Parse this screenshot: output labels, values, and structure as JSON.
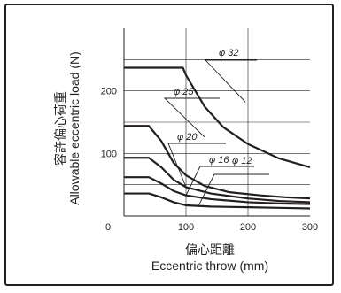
{
  "chart_data": {
    "type": "line",
    "ylabel_jp": "容許偏心荷重",
    "ylabel": "Allowable eccentric load (N)",
    "xlabel_jp": "偏心距離",
    "xlabel": "Eccentric throw (mm)",
    "xlim": [
      0,
      300
    ],
    "ylim": [
      0,
      300
    ],
    "x_ticks": [
      0,
      100,
      200,
      300
    ],
    "y_ticks": [
      100,
      200
    ],
    "grid": true,
    "colors": {
      "line": "#231f20",
      "grid": "#231f20"
    },
    "series": [
      {
        "name": "φ 32",
        "x": [
          0,
          95,
          100,
          130,
          160,
          200,
          250,
          300
        ],
        "y": [
          237,
          237,
          225,
          175,
          142,
          115,
          92,
          78
        ]
      },
      {
        "name": "φ 25",
        "x": [
          0,
          40,
          60,
          80,
          100,
          130,
          170,
          220,
          260,
          300
        ],
        "y": [
          144,
          144,
          120,
          85,
          65,
          48,
          38,
          33,
          30,
          28
        ]
      },
      {
        "name": "φ 20",
        "x": [
          0,
          40,
          60,
          80,
          100,
          140,
          200,
          250,
          300
        ],
        "y": [
          93,
          93,
          78,
          58,
          46,
          36,
          28,
          24,
          22
        ]
      },
      {
        "name": "φ 16",
        "x": [
          0,
          40,
          60,
          80,
          100,
          140,
          200,
          250,
          300
        ],
        "y": [
          62,
          62,
          52,
          40,
          33,
          27,
          22,
          20,
          19
        ]
      },
      {
        "name": "φ 12",
        "x": [
          0,
          40,
          60,
          80,
          100,
          140,
          200,
          250,
          300
        ],
        "y": [
          36,
          36,
          30,
          22,
          17,
          15,
          14,
          13,
          12
        ]
      }
    ]
  }
}
